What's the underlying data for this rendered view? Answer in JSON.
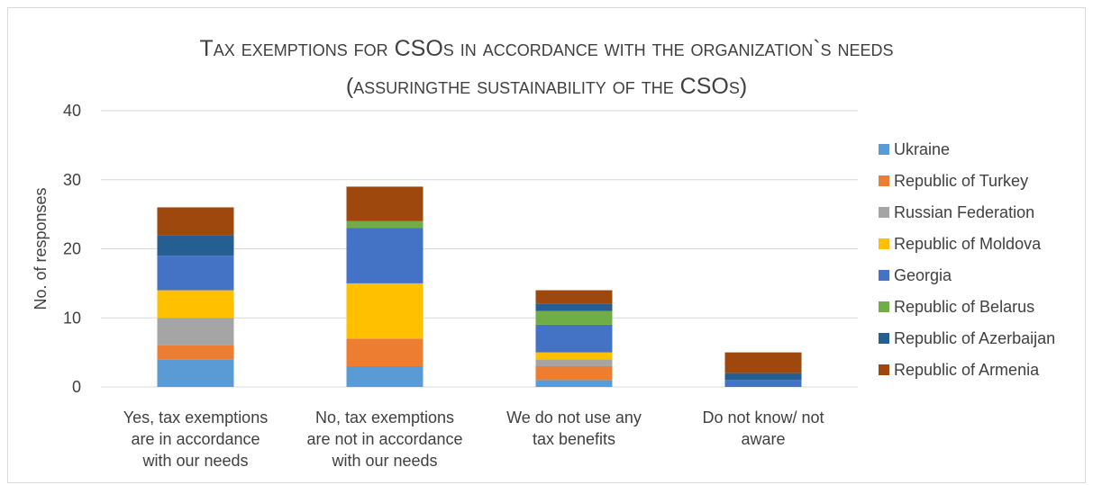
{
  "chart_data": {
    "type": "bar",
    "stacked": true,
    "title_line1": "Tax exemptions for CSOs in accordance with the organization`s needs",
    "title_line2": "(assuringthe sustainability of the CSOs)",
    "ylabel": "No. of responses",
    "xlabel": "",
    "ylim": [
      0,
      40
    ],
    "yticks": [
      "0",
      "10",
      "20",
      "30",
      "40"
    ],
    "grid": true,
    "legend_position": "right",
    "categories": [
      [
        "Yes, tax exemptions",
        "are in accordance",
        "with our needs"
      ],
      [
        "No, tax exemptions",
        "are not in accordance",
        "with our needs"
      ],
      [
        "We do not use any",
        "tax benefits"
      ],
      [
        "Do not know/ not",
        "aware"
      ]
    ],
    "series": [
      {
        "name": "Ukraine",
        "color": "#5b9bd5",
        "values": [
          4,
          3,
          1,
          0
        ]
      },
      {
        "name": "Republic of Turkey",
        "color": "#ed7d31",
        "values": [
          2,
          4,
          2,
          0
        ]
      },
      {
        "name": "Russian Federation",
        "color": "#a5a5a5",
        "values": [
          4,
          0,
          1,
          0
        ]
      },
      {
        "name": "Republic of Moldova",
        "color": "#ffc000",
        "values": [
          4,
          8,
          1,
          0
        ]
      },
      {
        "name": "Georgia",
        "color": "#4472c4",
        "values": [
          5,
          8,
          4,
          1
        ]
      },
      {
        "name": "Republic of Belarus",
        "color": "#70ad47",
        "values": [
          0,
          1,
          2,
          0
        ]
      },
      {
        "name": "Republic of Azerbaijan",
        "color": "#255e91",
        "values": [
          3,
          0,
          1,
          1
        ]
      },
      {
        "name": "Republic of Armenia",
        "color": "#9e480e",
        "values": [
          4,
          5,
          2,
          3
        ]
      }
    ]
  }
}
